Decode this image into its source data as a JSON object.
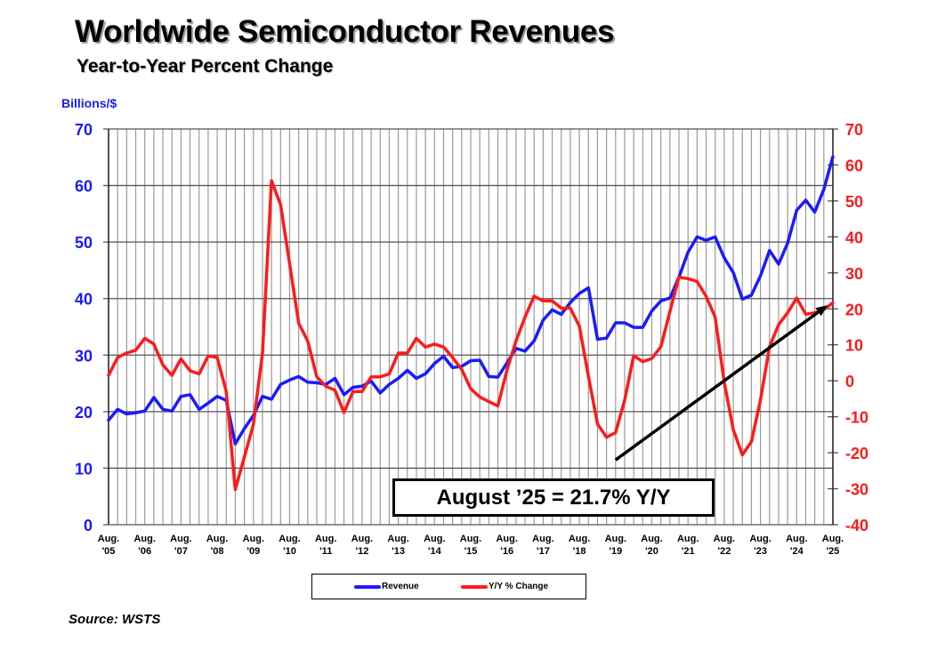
{
  "header": {
    "title": "Worldwide Semiconductor Revenues",
    "subtitle": "Year-to-Year Percent Change"
  },
  "source": "Source: WSTS",
  "chart_data": {
    "type": "line",
    "title": "Worldwide Semiconductor Revenues",
    "subtitle": "Year-to-Year Percent Change",
    "ylabel": "Billions/$",
    "ylim": [
      0,
      70
    ],
    "y2lim": [
      -40,
      70
    ],
    "yticks": [
      "0",
      "10",
      "20",
      "30",
      "40",
      "50",
      "60",
      "70"
    ],
    "y2ticks": [
      "-40",
      "-30",
      "-20",
      "-10",
      "0",
      "10",
      "20",
      "30",
      "40",
      "50",
      "60",
      "70"
    ],
    "xtick_labels": [
      [
        "Aug.",
        "'05"
      ],
      [
        "Aug.",
        "'06"
      ],
      [
        "Aug.",
        "'07"
      ],
      [
        "Aug.",
        "'08"
      ],
      [
        "Aug.",
        "'09"
      ],
      [
        "Aug.",
        "'10"
      ],
      [
        "Aug.",
        "'11"
      ],
      [
        "Aug.",
        "'12"
      ],
      [
        "Aug.",
        "'13"
      ],
      [
        "Aug.",
        "'14"
      ],
      [
        "Aug.",
        "'15"
      ],
      [
        "Aug.",
        "'16"
      ],
      [
        "Aug.",
        "'17"
      ],
      [
        "Aug.",
        "'18"
      ],
      [
        "Aug.",
        "'19"
      ],
      [
        "Aug.",
        "'20"
      ],
      [
        "Aug.",
        "'21"
      ],
      [
        "Aug.",
        "'22"
      ],
      [
        "Aug.",
        "'23"
      ],
      [
        "Aug.",
        "'24"
      ],
      [
        "Aug.",
        "'25"
      ]
    ],
    "grid": true,
    "legend_position": "bottom",
    "x": [
      "2005-08",
      "2005-11",
      "2006-02",
      "2006-05",
      "2006-08",
      "2006-11",
      "2007-02",
      "2007-05",
      "2007-08",
      "2007-11",
      "2008-02",
      "2008-05",
      "2008-08",
      "2008-11",
      "2009-02",
      "2009-05",
      "2009-08",
      "2009-11",
      "2010-02",
      "2010-05",
      "2010-08",
      "2010-11",
      "2011-02",
      "2011-05",
      "2011-08",
      "2011-11",
      "2012-02",
      "2012-05",
      "2012-08",
      "2012-11",
      "2013-02",
      "2013-05",
      "2013-08",
      "2013-11",
      "2014-02",
      "2014-05",
      "2014-08",
      "2014-11",
      "2015-02",
      "2015-05",
      "2015-08",
      "2015-11",
      "2016-02",
      "2016-05",
      "2016-08",
      "2016-11",
      "2017-02",
      "2017-05",
      "2017-08",
      "2017-11",
      "2018-02",
      "2018-05",
      "2018-08",
      "2018-11",
      "2019-02",
      "2019-05",
      "2019-08",
      "2019-11",
      "2020-02",
      "2020-05",
      "2020-08",
      "2020-11",
      "2021-02",
      "2021-05",
      "2021-08",
      "2021-11",
      "2022-02",
      "2022-05",
      "2022-08",
      "2022-11",
      "2023-02",
      "2023-05",
      "2023-08",
      "2023-11",
      "2024-02",
      "2024-05",
      "2024-08",
      "2024-11",
      "2025-02",
      "2025-05",
      "2025-08"
    ],
    "series": [
      {
        "name": "Revenue",
        "axis": "left",
        "color": "#1a1aff",
        "values": [
          18.5,
          20.4,
          19.6,
          19.8,
          20.1,
          22.5,
          20.4,
          20.1,
          22.7,
          23.0,
          20.4,
          21.5,
          22.7,
          22.0,
          14.3,
          17.0,
          19.3,
          22.7,
          22.2,
          24.8,
          25.6,
          26.2,
          25.2,
          25.1,
          24.8,
          25.9,
          23.0,
          24.3,
          24.5,
          25.4,
          23.3,
          24.8,
          25.9,
          27.3,
          25.9,
          26.7,
          28.5,
          29.8,
          27.8,
          28.0,
          29.0,
          29.1,
          26.2,
          26.1,
          28.6,
          31.2,
          30.7,
          32.5,
          36.2,
          38.0,
          37.2,
          39.3,
          40.9,
          41.9,
          32.8,
          33.0,
          35.7,
          35.7,
          34.9,
          34.9,
          37.8,
          39.6,
          40.1,
          43.8,
          48.2,
          50.9,
          50.3,
          50.9,
          47.2,
          44.6,
          39.9,
          40.6,
          44.0,
          48.5,
          46.1,
          49.8,
          55.6,
          57.4,
          55.3,
          59.3,
          65.1
        ]
      },
      {
        "name": "Y/Y % Change",
        "axis": "right",
        "color": "#ff1a1a",
        "values": [
          1.5,
          6.5,
          7.7,
          8.5,
          11.8,
          10.2,
          4.4,
          1.5,
          6.1,
          2.8,
          1.9,
          6.9,
          6.5,
          -3.0,
          -30.2,
          -21.2,
          -12.1,
          7.7,
          55.6,
          49.0,
          32.5,
          16.0,
          11.0,
          1.1,
          -1.5,
          -2.6,
          -8.8,
          -3.0,
          -3.0,
          1.1,
          1.1,
          1.9,
          7.7,
          7.7,
          11.8,
          9.4,
          10.2,
          9.4,
          6.5,
          3.2,
          -2.2,
          -4.5,
          -5.8,
          -7.0,
          2.9,
          11.1,
          17.7,
          23.5,
          22.2,
          22.2,
          20.2,
          20.2,
          15.2,
          1.2,
          -12.0,
          -15.7,
          -14.4,
          -5.4,
          7.0,
          5.3,
          6.2,
          9.5,
          19.3,
          28.8,
          28.4,
          27.6,
          23.5,
          17.7,
          -0.4,
          -13.6,
          -20.6,
          -16.9,
          -5.4,
          9.5,
          15.6,
          18.9,
          23.0,
          18.5,
          18.9,
          19.8,
          21.7
        ]
      }
    ],
    "trend_arrow": {
      "from": {
        "x": "2019-08",
        "y2": -22
      },
      "to": {
        "x": "2025-08",
        "y2": 21
      }
    },
    "annotation": "August ’25 = 21.7% Y/Y"
  }
}
